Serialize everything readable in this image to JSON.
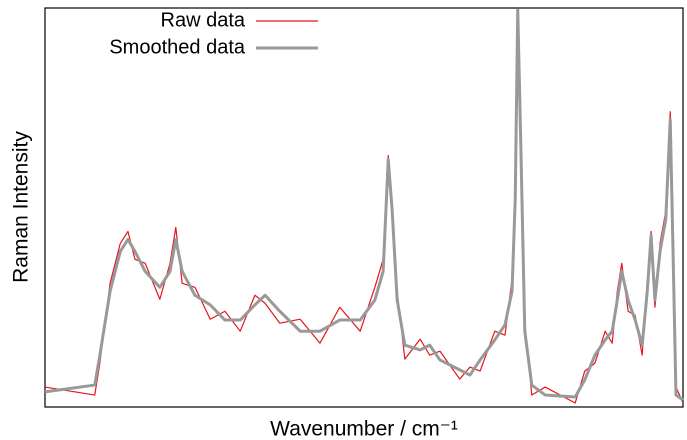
{
  "chart_data": {
    "type": "line",
    "xlabel": "Wavenumber / cm⁻¹",
    "ylabel": "Raman Intensity",
    "xlim": [
      0,
      100
    ],
    "ylim": [
      0,
      100
    ],
    "legend": "upper left",
    "x": [
      0,
      7.8,
      8.6,
      10.2,
      11.8,
      13.0,
      14.1,
      15.7,
      18.0,
      19.6,
      20.5,
      21.5,
      23.5,
      25.9,
      28.2,
      30.6,
      32.9,
      34.5,
      36.8,
      40.0,
      43.1,
      46.2,
      49.4,
      51.7,
      53.0,
      53.8,
      54.4,
      55.2,
      56.4,
      58.8,
      60.3,
      61.9,
      65.0,
      66.6,
      68.2,
      70.5,
      72.1,
      73.2,
      73.7,
      74.1,
      74.6,
      75.2,
      76.3,
      78.4,
      83.1,
      84.6,
      86.2,
      87.8,
      88.9,
      89.7,
      90.4,
      91.4,
      92.5,
      93.6,
      94.4,
      95.0,
      95.6,
      96.4,
      97.3,
      98.0,
      98.4,
      98.9,
      100
    ],
    "series": [
      {
        "name": "Raw data",
        "color": "#e8141a",
        "width": 1.2,
        "values": [
          5,
          3,
          11,
          31,
          41,
          44,
          37,
          36,
          27,
          36,
          45,
          31,
          30,
          22,
          24,
          19,
          28,
          26,
          21,
          22,
          16,
          25,
          19,
          30,
          37,
          63,
          48,
          29,
          12,
          17,
          13,
          14,
          7,
          10,
          9,
          19,
          18,
          32,
          53,
          100,
          61,
          21,
          3,
          5,
          1,
          9,
          11,
          19,
          16,
          29,
          36,
          24,
          23,
          13,
          31,
          44,
          25,
          41,
          49,
          74,
          40,
          5,
          1
        ]
      },
      {
        "name": "Smoothed data",
        "color": "#999999",
        "width": 3,
        "values": [
          3.8,
          5.5,
          13,
          29,
          39,
          42,
          39,
          34,
          30,
          34,
          42,
          34,
          28,
          25.6,
          21.8,
          21.8,
          25.6,
          28,
          24,
          19,
          19,
          21.8,
          21.8,
          26.8,
          34,
          62,
          49.6,
          26.8,
          15.5,
          14.3,
          15.5,
          11.8,
          9.3,
          8,
          11.8,
          16.8,
          20.6,
          29,
          52,
          99.5,
          64,
          19,
          5.5,
          3,
          2.5,
          6.8,
          13,
          16.8,
          19,
          26.8,
          34,
          26.8,
          21.8,
          15.5,
          29,
          43,
          26.8,
          39,
          47,
          72,
          42,
          3,
          1.75
        ]
      }
    ]
  }
}
